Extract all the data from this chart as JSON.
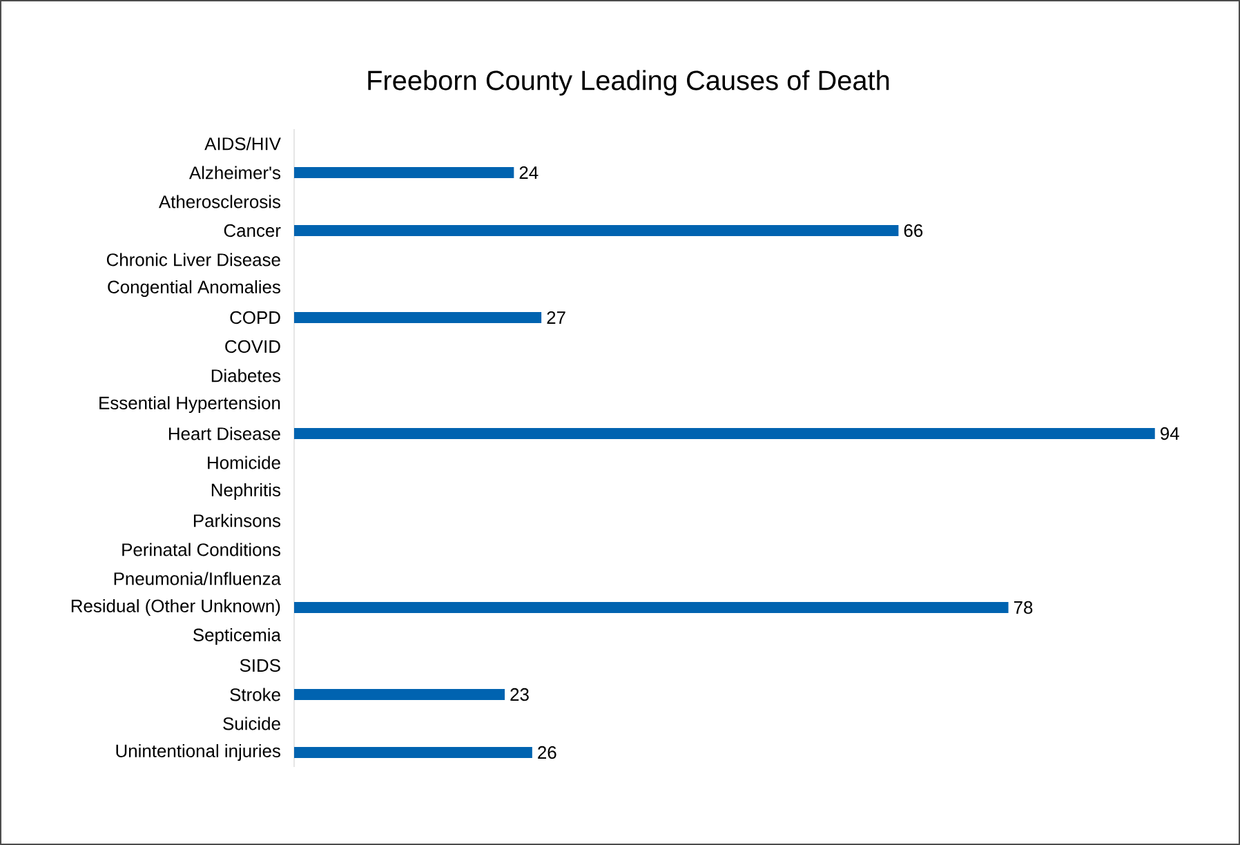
{
  "chart_data": {
    "type": "bar",
    "orientation": "horizontal",
    "title": "Freeborn County Leading Causes of Death",
    "categories": [
      "AIDS/HIV",
      "Alzheimer's",
      "Atherosclerosis",
      "Cancer",
      "Chronic Liver Disease",
      "Congential Anomalies",
      "COPD",
      "COVID",
      "Diabetes",
      "Essential Hypertension",
      "Heart Disease",
      "Homicide",
      "Nephritis",
      "Parkinsons",
      "Perinatal Conditions",
      "Pneumonia/Influenza",
      "Residual (Other Unknown)",
      "Septicemia",
      "SIDS",
      "Stroke",
      "Suicide",
      "Unintentional injuries"
    ],
    "values": [
      null,
      24,
      null,
      66,
      null,
      null,
      27,
      null,
      null,
      null,
      94,
      null,
      null,
      null,
      null,
      null,
      78,
      null,
      null,
      23,
      null,
      26
    ],
    "color": "#0063b0",
    "data_labels": true,
    "tick_labels": "y"
  }
}
